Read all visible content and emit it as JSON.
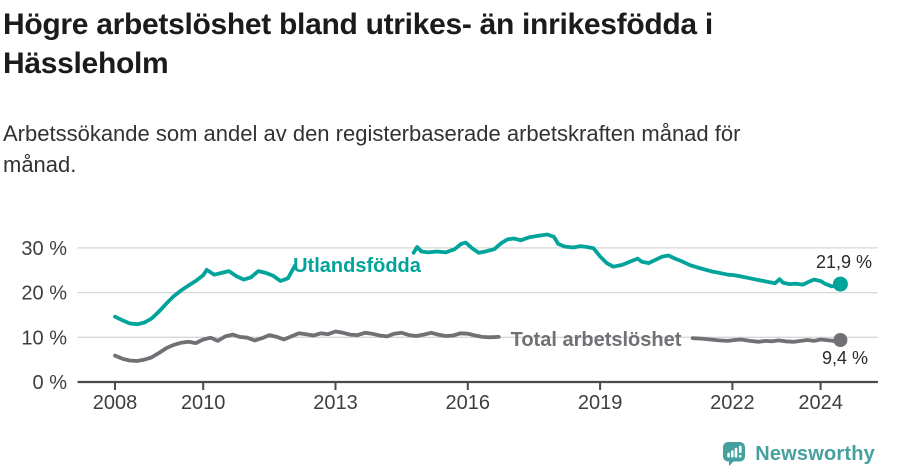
{
  "chart_data": {
    "type": "line",
    "title": "Högre arbetslöshet bland utrikes- än inrikesfödda i\nHässleholm",
    "subtitle": "Arbetssökande som andel av den registerbaserade arbetskraften månad för\nmånad.",
    "unit": "%",
    "xlim": [
      2007.15,
      2025.3
    ],
    "ylim": [
      0,
      34
    ],
    "grid": "horizontal",
    "legend_position": "inline-labels",
    "yticks": [
      {
        "v": 0,
        "label": "0 %"
      },
      {
        "v": 10,
        "label": "10 %"
      },
      {
        "v": 20,
        "label": "20 %"
      },
      {
        "v": 30,
        "label": "30 %"
      }
    ],
    "xticks": [
      {
        "v": 2008,
        "label": "2008"
      },
      {
        "v": 2010,
        "label": "2010"
      },
      {
        "v": 2013,
        "label": "2013"
      },
      {
        "v": 2016,
        "label": "2016"
      },
      {
        "v": 2019,
        "label": "2019"
      },
      {
        "v": 2022,
        "label": "2022"
      },
      {
        "v": 2024,
        "label": "2024"
      }
    ],
    "series": [
      {
        "name": "Utlandsfödda",
        "inline_label": "Utlandsfödda",
        "end_label": "21,9 %",
        "end_value": 21.9,
        "color": "#00a49a",
        "segments": [
          [
            [
              2008.0,
              14.6
            ],
            [
              2008.17,
              13.8
            ],
            [
              2008.33,
              13.1
            ],
            [
              2008.5,
              12.9
            ],
            [
              2008.67,
              13.3
            ],
            [
              2008.83,
              14.2
            ],
            [
              2009.0,
              15.8
            ],
            [
              2009.17,
              17.6
            ],
            [
              2009.33,
              19.2
            ],
            [
              2009.5,
              20.5
            ],
            [
              2009.67,
              21.6
            ],
            [
              2009.83,
              22.6
            ],
            [
              2010.0,
              23.9
            ],
            [
              2010.08,
              25.1
            ],
            [
              2010.25,
              24.0
            ],
            [
              2010.42,
              24.4
            ],
            [
              2010.58,
              24.8
            ],
            [
              2010.75,
              23.7
            ],
            [
              2010.92,
              22.9
            ],
            [
              2011.08,
              23.4
            ],
            [
              2011.25,
              24.8
            ],
            [
              2011.42,
              24.4
            ],
            [
              2011.58,
              23.8
            ],
            [
              2011.75,
              22.6
            ],
            [
              2011.92,
              23.2
            ],
            [
              2012.08,
              26.0
            ]
          ],
          [
            [
              2014.77,
              28.9
            ],
            [
              2014.85,
              30.2
            ],
            [
              2014.95,
              29.2
            ],
            [
              2015.1,
              29.0
            ],
            [
              2015.3,
              29.2
            ],
            [
              2015.5,
              29.0
            ],
            [
              2015.7,
              29.7
            ],
            [
              2015.85,
              30.9
            ],
            [
              2015.95,
              31.2
            ],
            [
              2016.1,
              29.9
            ],
            [
              2016.25,
              28.9
            ],
            [
              2016.4,
              29.2
            ],
            [
              2016.6,
              29.7
            ],
            [
              2016.75,
              31.0
            ],
            [
              2016.9,
              31.9
            ],
            [
              2017.05,
              32.1
            ],
            [
              2017.2,
              31.7
            ],
            [
              2017.4,
              32.4
            ],
            [
              2017.6,
              32.7
            ],
            [
              2017.8,
              33.0
            ],
            [
              2017.95,
              32.5
            ],
            [
              2018.05,
              30.9
            ],
            [
              2018.2,
              30.3
            ],
            [
              2018.4,
              30.1
            ],
            [
              2018.55,
              30.4
            ],
            [
              2018.7,
              30.2
            ],
            [
              2018.85,
              29.9
            ],
            [
              2019.0,
              28.1
            ],
            [
              2019.15,
              26.6
            ],
            [
              2019.3,
              25.8
            ],
            [
              2019.5,
              26.2
            ],
            [
              2019.7,
              27.0
            ],
            [
              2019.85,
              27.6
            ],
            [
              2019.95,
              26.9
            ],
            [
              2020.1,
              26.6
            ],
            [
              2020.25,
              27.3
            ],
            [
              2020.4,
              28.0
            ],
            [
              2020.55,
              28.3
            ],
            [
              2020.7,
              27.6
            ],
            [
              2020.85,
              27.0
            ],
            [
              2021.05,
              26.1
            ],
            [
              2021.25,
              25.5
            ],
            [
              2021.5,
              24.8
            ],
            [
              2021.7,
              24.4
            ],
            [
              2021.9,
              24.0
            ],
            [
              2022.05,
              23.9
            ],
            [
              2022.2,
              23.6
            ],
            [
              2022.4,
              23.2
            ],
            [
              2022.6,
              22.8
            ],
            [
              2022.8,
              22.4
            ],
            [
              2022.97,
              22.1
            ],
            [
              2023.07,
              23.0
            ],
            [
              2023.15,
              22.2
            ],
            [
              2023.3,
              21.9
            ],
            [
              2023.45,
              22.0
            ],
            [
              2023.6,
              21.8
            ],
            [
              2023.75,
              22.5
            ],
            [
              2023.85,
              22.9
            ],
            [
              2024.0,
              22.6
            ],
            [
              2024.1,
              22.0
            ],
            [
              2024.25,
              21.4
            ],
            [
              2024.35,
              21.5
            ],
            [
              2024.45,
              21.9
            ]
          ]
        ]
      },
      {
        "name": "Total arbetslöshet",
        "inline_label": "Total arbetslöshet",
        "end_label": "9,4 %",
        "end_value": 9.4,
        "color": "#707075",
        "segments": [
          [
            [
              2008.0,
              5.9
            ],
            [
              2008.17,
              5.2
            ],
            [
              2008.33,
              4.8
            ],
            [
              2008.5,
              4.7
            ],
            [
              2008.67,
              5.0
            ],
            [
              2008.83,
              5.5
            ],
            [
              2009.0,
              6.5
            ],
            [
              2009.17,
              7.6
            ],
            [
              2009.33,
              8.3
            ],
            [
              2009.5,
              8.8
            ],
            [
              2009.67,
              9.0
            ],
            [
              2009.83,
              8.7
            ],
            [
              2010.0,
              9.5
            ],
            [
              2010.17,
              9.9
            ],
            [
              2010.33,
              9.2
            ],
            [
              2010.5,
              10.2
            ],
            [
              2010.67,
              10.6
            ],
            [
              2010.83,
              10.1
            ],
            [
              2011.0,
              9.9
            ],
            [
              2011.17,
              9.3
            ],
            [
              2011.33,
              9.8
            ],
            [
              2011.5,
              10.5
            ],
            [
              2011.67,
              10.1
            ],
            [
              2011.83,
              9.5
            ],
            [
              2012.0,
              10.2
            ],
            [
              2012.17,
              10.9
            ],
            [
              2012.33,
              10.7
            ],
            [
              2012.5,
              10.4
            ],
            [
              2012.67,
              10.9
            ],
            [
              2012.83,
              10.7
            ],
            [
              2013.0,
              11.3
            ],
            [
              2013.17,
              11.0
            ],
            [
              2013.33,
              10.6
            ],
            [
              2013.5,
              10.5
            ],
            [
              2013.67,
              11.0
            ],
            [
              2013.83,
              10.8
            ],
            [
              2014.0,
              10.4
            ],
            [
              2014.17,
              10.2
            ],
            [
              2014.33,
              10.8
            ],
            [
              2014.5,
              11.0
            ],
            [
              2014.67,
              10.5
            ],
            [
              2014.83,
              10.3
            ],
            [
              2015.0,
              10.6
            ],
            [
              2015.17,
              11.0
            ],
            [
              2015.33,
              10.6
            ],
            [
              2015.5,
              10.3
            ],
            [
              2015.67,
              10.4
            ],
            [
              2015.83,
              10.9
            ],
            [
              2016.0,
              10.8
            ],
            [
              2016.17,
              10.4
            ],
            [
              2016.33,
              10.1
            ],
            [
              2016.5,
              10.0
            ],
            [
              2016.7,
              10.1
            ]
          ],
          [
            [
              2021.1,
              9.8
            ],
            [
              2021.3,
              9.7
            ],
            [
              2021.5,
              9.5
            ],
            [
              2021.7,
              9.3
            ],
            [
              2021.9,
              9.2
            ],
            [
              2022.05,
              9.4
            ],
            [
              2022.2,
              9.5
            ],
            [
              2022.4,
              9.2
            ],
            [
              2022.6,
              9.0
            ],
            [
              2022.75,
              9.2
            ],
            [
              2022.9,
              9.1
            ],
            [
              2023.05,
              9.3
            ],
            [
              2023.2,
              9.1
            ],
            [
              2023.4,
              9.0
            ],
            [
              2023.55,
              9.2
            ],
            [
              2023.7,
              9.4
            ],
            [
              2023.85,
              9.2
            ],
            [
              2024.0,
              9.5
            ],
            [
              2024.2,
              9.3
            ],
            [
              2024.35,
              9.1
            ],
            [
              2024.45,
              9.4
            ]
          ]
        ]
      }
    ]
  },
  "footer": {
    "brand": "Newsworthy",
    "color": "#46a19e"
  }
}
